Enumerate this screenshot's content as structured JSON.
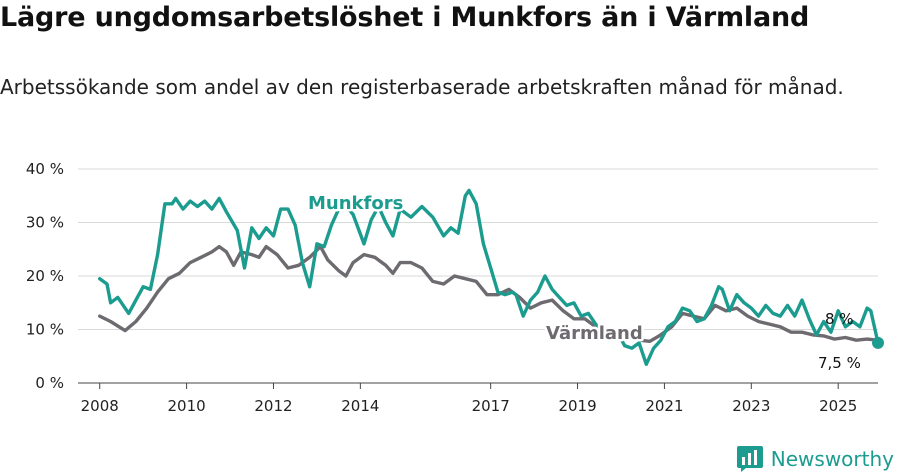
{
  "title": "Lägre ungdomsarbetslöshet i Munkfors än i Värmland",
  "subtitle": "Arbetssökande som andel av den registerbaserade arbetskraften månad för månad.",
  "brand": "Newsworthy",
  "colors": {
    "munkfors": "#1b9c8f",
    "varmland": "#6d6a70",
    "grid": "#d9d9d9",
    "brand": "#1b9c8f"
  },
  "chart_data": {
    "type": "line",
    "title": "Lägre ungdomsarbetslöshet i Munkfors än i Värmland",
    "xlabel": "",
    "ylabel": "",
    "x_ticks": [
      "2008",
      "2010",
      "2012",
      "2014",
      "2017",
      "2019",
      "2021",
      "2023",
      "2025"
    ],
    "y_ticks": [
      "0 %",
      "10 %",
      "20 %",
      "30 %",
      "40 %"
    ],
    "ylim": [
      0,
      40
    ],
    "xlim": [
      "2007-07",
      "2025-12"
    ],
    "grid": true,
    "series": [
      {
        "name": "Munkfors",
        "end_label": "7,5 %",
        "points": [
          [
            "2008-01",
            19.5
          ],
          [
            "2008-03",
            18.5
          ],
          [
            "2008-04",
            15.0
          ],
          [
            "2008-06",
            16.0
          ],
          [
            "2008-09",
            13.0
          ],
          [
            "2008-11",
            15.5
          ],
          [
            "2009-01",
            18.0
          ],
          [
            "2009-03",
            17.5
          ],
          [
            "2009-05",
            24.0
          ],
          [
            "2009-07",
            33.5
          ],
          [
            "2009-09",
            33.5
          ],
          [
            "2009-10",
            34.5
          ],
          [
            "2009-12",
            32.5
          ],
          [
            "2010-02",
            34.0
          ],
          [
            "2010-04",
            33.0
          ],
          [
            "2010-06",
            34.0
          ],
          [
            "2010-08",
            32.5
          ],
          [
            "2010-10",
            34.5
          ],
          [
            "2010-12",
            32.0
          ],
          [
            "2011-03",
            28.5
          ],
          [
            "2011-05",
            21.5
          ],
          [
            "2011-07",
            29.0
          ],
          [
            "2011-09",
            27.0
          ],
          [
            "2011-11",
            29.0
          ],
          [
            "2012-01",
            27.5
          ],
          [
            "2012-03",
            32.5
          ],
          [
            "2012-05",
            32.5
          ],
          [
            "2012-07",
            29.5
          ],
          [
            "2012-09",
            22.5
          ],
          [
            "2012-11",
            18.0
          ],
          [
            "2013-01",
            26.0
          ],
          [
            "2013-03",
            25.5
          ],
          [
            "2013-05",
            29.5
          ],
          [
            "2013-08",
            34.0
          ],
          [
            "2013-11",
            31.5
          ],
          [
            "2014-02",
            26.0
          ],
          [
            "2014-04",
            30.5
          ],
          [
            "2014-06",
            33.0
          ],
          [
            "2014-08",
            30.0
          ],
          [
            "2014-10",
            27.5
          ],
          [
            "2014-12",
            32.5
          ],
          [
            "2015-03",
            31.0
          ],
          [
            "2015-06",
            33.0
          ],
          [
            "2015-09",
            31.0
          ],
          [
            "2015-12",
            27.5
          ],
          [
            "2016-02",
            29.0
          ],
          [
            "2016-04",
            28.0
          ],
          [
            "2016-06",
            35.0
          ],
          [
            "2016-07",
            36.0
          ],
          [
            "2016-09",
            33.5
          ],
          [
            "2016-11",
            26.0
          ],
          [
            "2017-01",
            21.5
          ],
          [
            "2017-03",
            17.0
          ],
          [
            "2017-05",
            16.5
          ],
          [
            "2017-07",
            17.0
          ],
          [
            "2017-08",
            16.5
          ],
          [
            "2017-10",
            12.5
          ],
          [
            "2017-12",
            15.5
          ],
          [
            "2018-02",
            17.0
          ],
          [
            "2018-04",
            20.0
          ],
          [
            "2018-06",
            17.5
          ],
          [
            "2018-08",
            16.0
          ],
          [
            "2018-10",
            14.5
          ],
          [
            "2018-12",
            15.0
          ],
          [
            "2019-02",
            12.5
          ],
          [
            "2019-04",
            13.0
          ],
          [
            "2019-06",
            11.0
          ],
          [
            "2019-08",
            9.5
          ],
          [
            "2019-10",
            8.5
          ],
          [
            "2019-12",
            9.5
          ],
          [
            "2020-02",
            7.0
          ],
          [
            "2020-04",
            6.5
          ],
          [
            "2020-06",
            7.5
          ],
          [
            "2020-08",
            3.5
          ],
          [
            "2020-10",
            6.5
          ],
          [
            "2020-12",
            8.0
          ],
          [
            "2021-02",
            10.5
          ],
          [
            "2021-04",
            11.5
          ],
          [
            "2021-06",
            14.0
          ],
          [
            "2021-08",
            13.5
          ],
          [
            "2021-10",
            11.5
          ],
          [
            "2021-12",
            12.0
          ],
          [
            "2022-02",
            14.5
          ],
          [
            "2022-04",
            18.0
          ],
          [
            "2022-05",
            17.5
          ],
          [
            "2022-07",
            13.5
          ],
          [
            "2022-09",
            16.5
          ],
          [
            "2022-11",
            15.0
          ],
          [
            "2023-01",
            14.0
          ],
          [
            "2023-03",
            12.5
          ],
          [
            "2023-05",
            14.5
          ],
          [
            "2023-07",
            13.0
          ],
          [
            "2023-09",
            12.5
          ],
          [
            "2023-11",
            14.5
          ],
          [
            "2024-01",
            12.5
          ],
          [
            "2024-03",
            15.5
          ],
          [
            "2024-05",
            12.0
          ],
          [
            "2024-07",
            9.0
          ],
          [
            "2024-09",
            11.5
          ],
          [
            "2024-11",
            9.5
          ],
          [
            "2025-01",
            13.5
          ],
          [
            "2025-03",
            10.5
          ],
          [
            "2025-05",
            11.5
          ],
          [
            "2025-07",
            10.5
          ],
          [
            "2025-09",
            14.0
          ],
          [
            "2025-10",
            13.5
          ],
          [
            "2025-12",
            7.5
          ]
        ]
      },
      {
        "name": "Värmland",
        "end_label": "8 %",
        "points": [
          [
            "2008-01",
            12.5
          ],
          [
            "2008-04",
            11.5
          ],
          [
            "2008-08",
            9.8
          ],
          [
            "2008-11",
            11.5
          ],
          [
            "2009-02",
            14.0
          ],
          [
            "2009-05",
            17.0
          ],
          [
            "2009-08",
            19.5
          ],
          [
            "2009-11",
            20.5
          ],
          [
            "2010-02",
            22.5
          ],
          [
            "2010-05",
            23.5
          ],
          [
            "2010-08",
            24.5
          ],
          [
            "2010-10",
            25.5
          ],
          [
            "2010-12",
            24.5
          ],
          [
            "2011-02",
            22.0
          ],
          [
            "2011-04",
            24.5
          ],
          [
            "2011-07",
            24.0
          ],
          [
            "2011-09",
            23.5
          ],
          [
            "2011-11",
            25.5
          ],
          [
            "2012-02",
            24.0
          ],
          [
            "2012-05",
            21.5
          ],
          [
            "2012-08",
            22.0
          ],
          [
            "2012-11",
            23.5
          ],
          [
            "2013-02",
            25.5
          ],
          [
            "2013-04",
            23.0
          ],
          [
            "2013-07",
            21.0
          ],
          [
            "2013-09",
            20.0
          ],
          [
            "2013-11",
            22.5
          ],
          [
            "2014-02",
            24.0
          ],
          [
            "2014-05",
            23.5
          ],
          [
            "2014-08",
            22.0
          ],
          [
            "2014-10",
            20.5
          ],
          [
            "2014-12",
            22.5
          ],
          [
            "2015-03",
            22.5
          ],
          [
            "2015-06",
            21.5
          ],
          [
            "2015-09",
            19.0
          ],
          [
            "2015-12",
            18.5
          ],
          [
            "2016-03",
            20.0
          ],
          [
            "2016-06",
            19.5
          ],
          [
            "2016-09",
            19.0
          ],
          [
            "2016-12",
            16.5
          ],
          [
            "2017-03",
            16.5
          ],
          [
            "2017-06",
            17.5
          ],
          [
            "2017-09",
            16.0
          ],
          [
            "2017-12",
            14.0
          ],
          [
            "2018-03",
            15.0
          ],
          [
            "2018-06",
            15.5
          ],
          [
            "2018-09",
            13.5
          ],
          [
            "2018-12",
            12.0
          ],
          [
            "2019-03",
            12.0
          ],
          [
            "2019-06",
            10.5
          ],
          [
            "2019-09",
            10.0
          ],
          [
            "2019-12",
            9.0
          ],
          [
            "2020-03",
            8.5
          ],
          [
            "2020-06",
            8.0
          ],
          [
            "2020-09",
            7.8
          ],
          [
            "2020-12",
            9.0
          ],
          [
            "2021-03",
            10.5
          ],
          [
            "2021-06",
            13.0
          ],
          [
            "2021-09",
            12.5
          ],
          [
            "2021-12",
            12.0
          ],
          [
            "2022-03",
            14.5
          ],
          [
            "2022-06",
            13.5
          ],
          [
            "2022-09",
            14.0
          ],
          [
            "2022-12",
            12.5
          ],
          [
            "2023-03",
            11.5
          ],
          [
            "2023-06",
            11.0
          ],
          [
            "2023-09",
            10.5
          ],
          [
            "2023-12",
            9.5
          ],
          [
            "2024-03",
            9.5
          ],
          [
            "2024-06",
            9.0
          ],
          [
            "2024-09",
            8.8
          ],
          [
            "2024-12",
            8.2
          ],
          [
            "2025-03",
            8.5
          ],
          [
            "2025-06",
            8.0
          ],
          [
            "2025-09",
            8.2
          ],
          [
            "2025-12",
            8.0
          ]
        ]
      }
    ]
  }
}
